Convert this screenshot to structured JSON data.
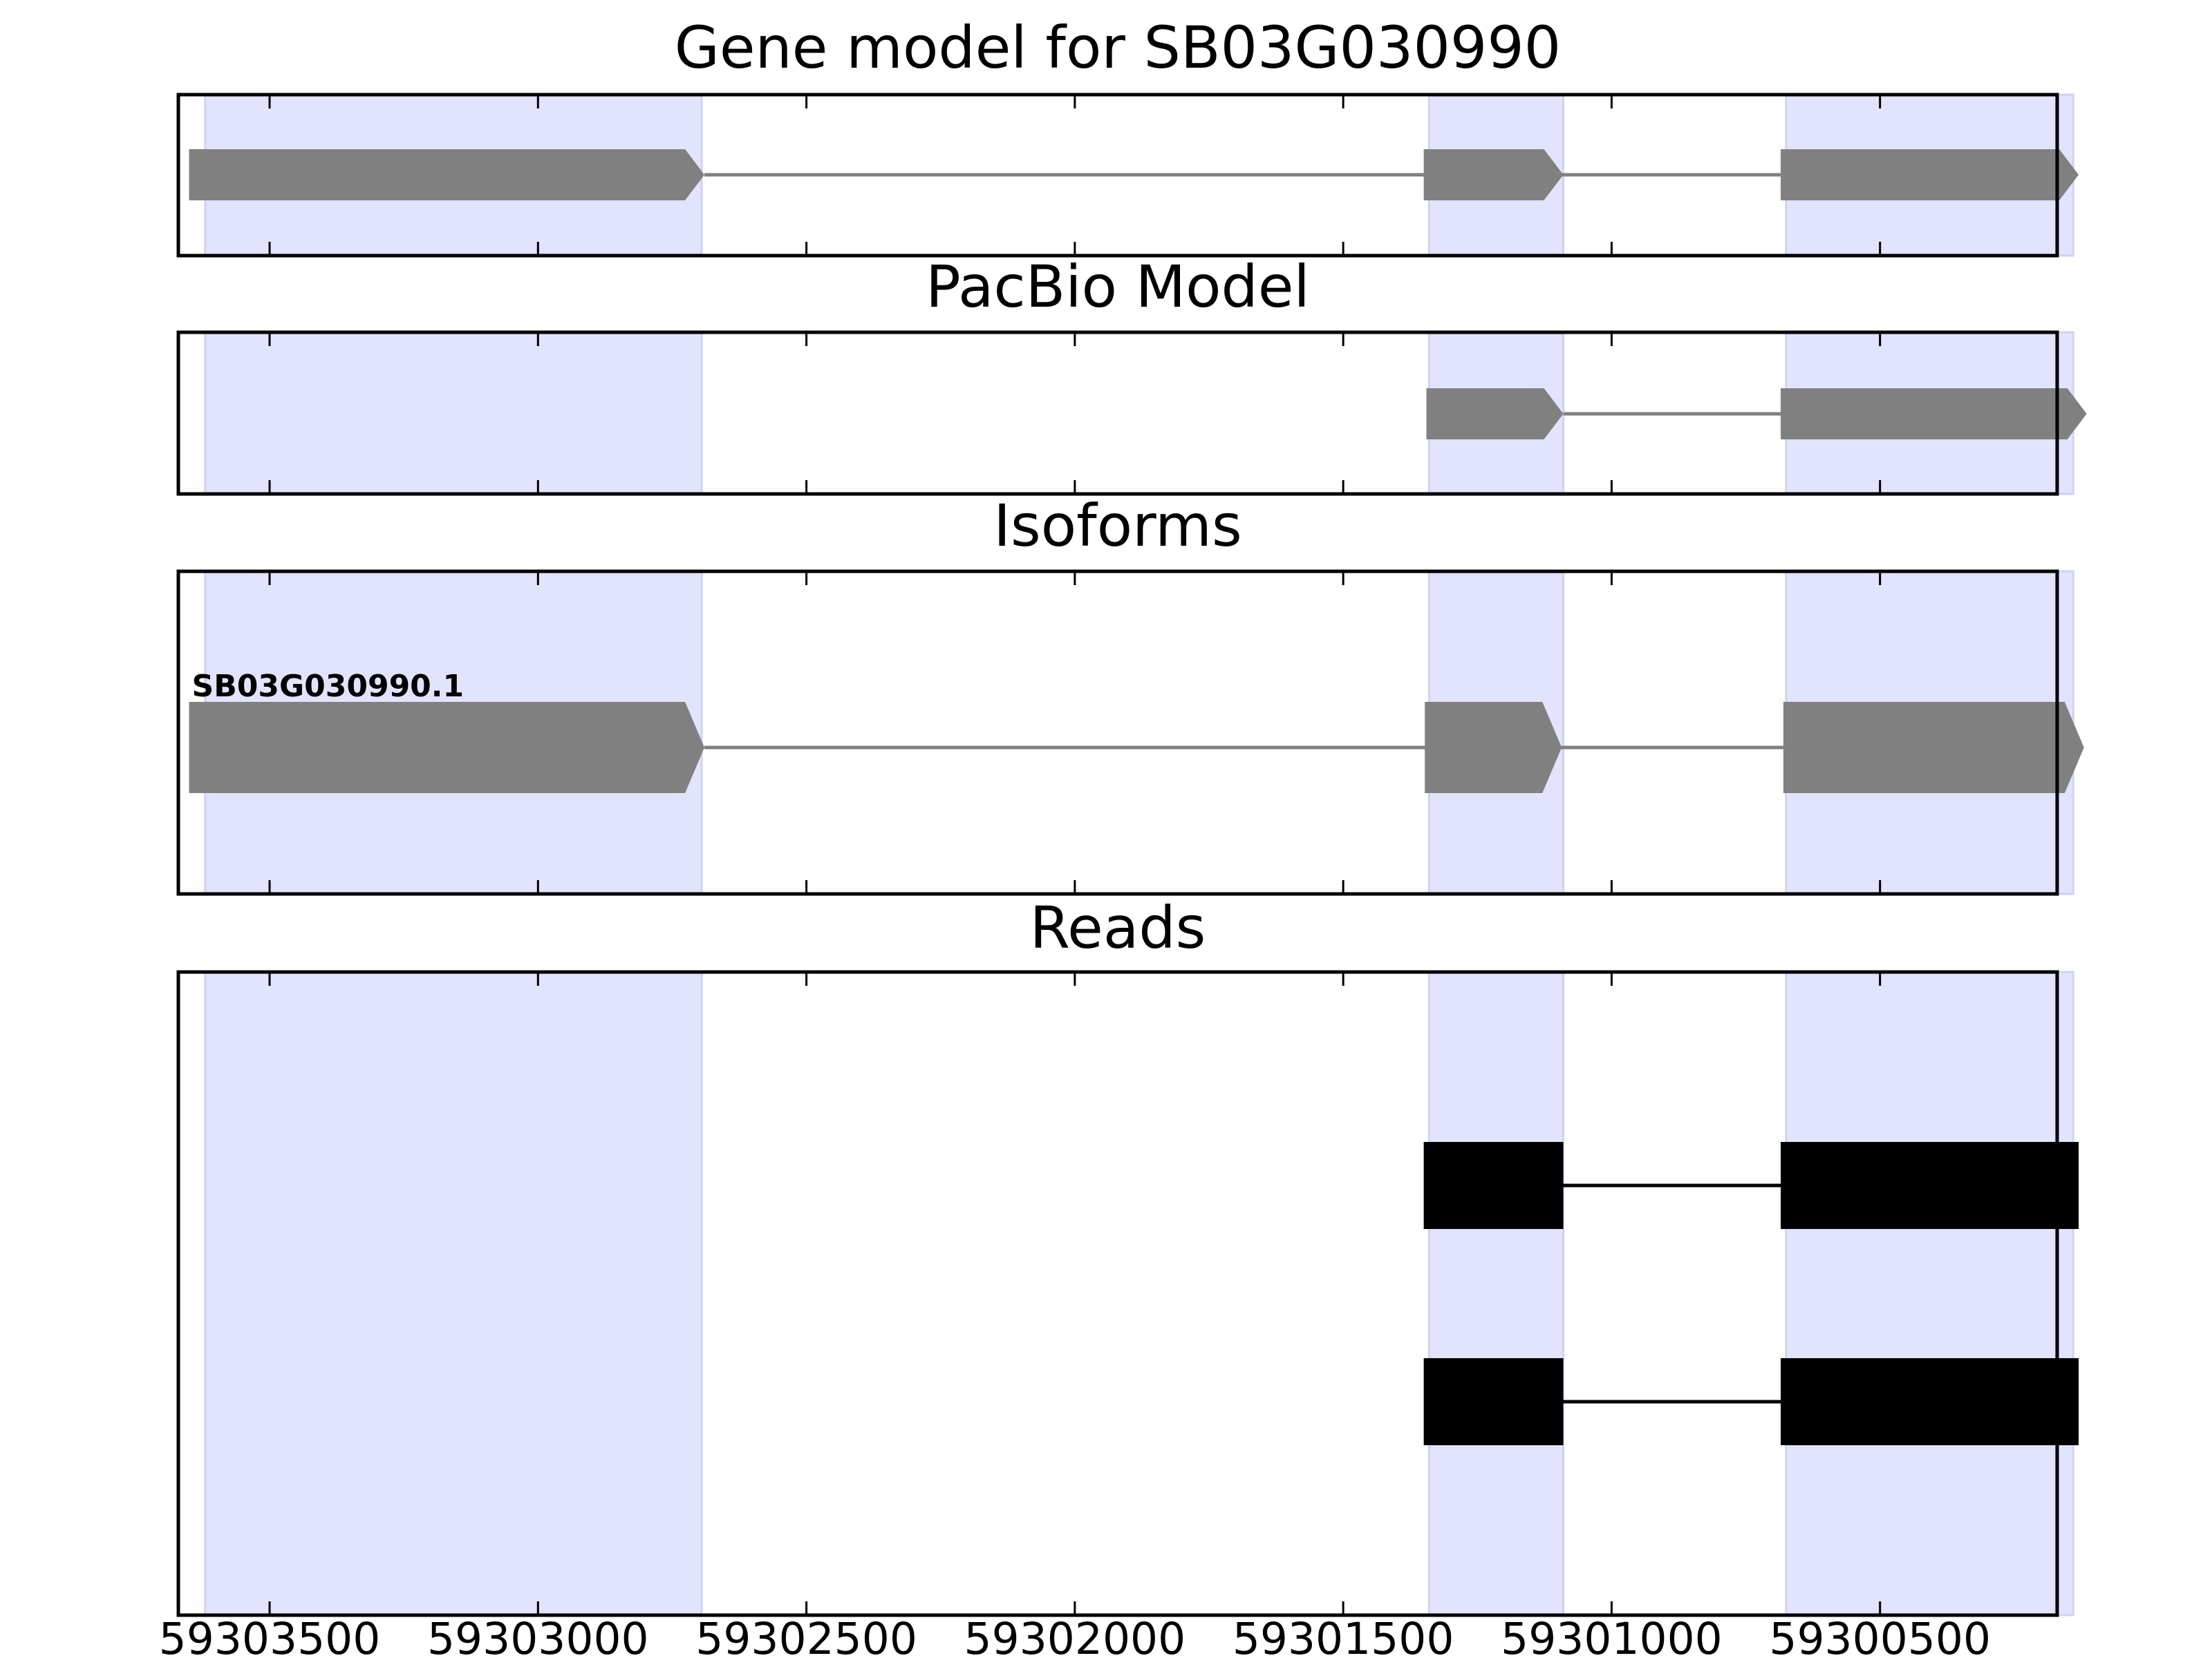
{
  "chart_data": {
    "type": "gene-track",
    "x_reversed": true,
    "xlim": [
      59303670,
      59300170
    ],
    "x_ticks": [
      59303500,
      59303000,
      59302500,
      59302000,
      59301500,
      59301000,
      59300500
    ],
    "x_tick_labels": [
      "59303500",
      "59303000",
      "59302500",
      "59302000",
      "59301500",
      "59301000",
      "59300500"
    ],
    "highlight_regions": [
      [
        59303620,
        59302695
      ],
      [
        59301340,
        59301090
      ],
      [
        59300675,
        59300140
      ]
    ],
    "colors": {
      "highlight": "#e2e3fd",
      "highlight_edge": "#cfd2f0",
      "gene_feature": "#808080",
      "read_feature": "#000000",
      "frame": "#000000"
    },
    "panels": [
      {
        "name": "gene-model",
        "title": "Gene model for SB03G030990",
        "style": "arrow",
        "tracks": [
          {
            "label": "",
            "exons": [
              [
                59303650,
                59302690
              ],
              [
                59301350,
                59301090
              ],
              [
                59300685,
                59300130
              ]
            ]
          }
        ]
      },
      {
        "name": "pacbio-model",
        "title": "PacBio Model",
        "style": "arrow",
        "tracks": [
          {
            "label": "",
            "exons": [
              [
                59301345,
                59301090
              ],
              [
                59300685,
                59300115
              ]
            ]
          }
        ]
      },
      {
        "name": "isoforms",
        "title": "Isoforms",
        "style": "arrow",
        "tracks": [
          {
            "label": "SB03G030990.1",
            "exons": [
              [
                59303650,
                59302690
              ],
              [
                59301348,
                59301093
              ],
              [
                59300680,
                59300120
              ]
            ]
          }
        ]
      },
      {
        "name": "reads",
        "title": "Reads",
        "style": "block",
        "tracks": [
          {
            "label": "",
            "exons": [
              [
                59301350,
                59301090
              ],
              [
                59300685,
                59300130
              ]
            ]
          },
          {
            "label": "",
            "exons": [
              [
                59301350,
                59301090
              ],
              [
                59300685,
                59300130
              ]
            ]
          }
        ]
      }
    ]
  }
}
